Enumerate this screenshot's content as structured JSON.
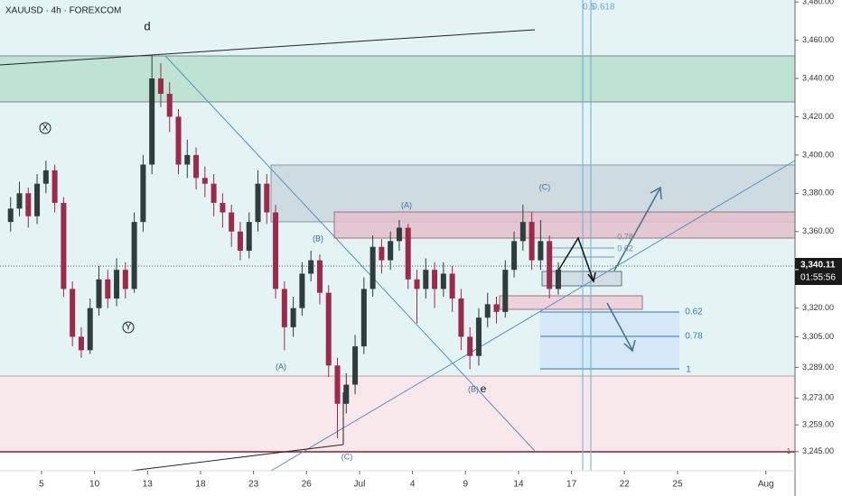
{
  "chart_data": {
    "type": "candlestick",
    "title": "XAUUSD · 4h · FOREXCOM",
    "up_color": "#2f3d3d",
    "down_color": "#9c2a4a",
    "xlim": [
      0.65,
      45.65
    ],
    "ylim": [
      3235,
      3481
    ],
    "xticks": [
      {
        "value": 3,
        "label": "5"
      },
      {
        "value": 6,
        "label": "10"
      },
      {
        "value": 9,
        "label": "13"
      },
      {
        "value": 12,
        "label": "18"
      },
      {
        "value": 15,
        "label": "23"
      },
      {
        "value": 18,
        "label": "26"
      },
      {
        "value": 21,
        "label": "Jul"
      },
      {
        "value": 24,
        "label": "4"
      },
      {
        "value": 27,
        "label": "9"
      },
      {
        "value": 30,
        "label": "14"
      },
      {
        "value": 33,
        "label": "17"
      },
      {
        "value": 36,
        "label": "22"
      },
      {
        "value": 39,
        "label": "25"
      },
      {
        "value": 44,
        "label": "Aug"
      }
    ],
    "yticks": [
      {
        "value": 3480,
        "label": "3,480.00"
      },
      {
        "value": 3460,
        "label": "3,460.00"
      },
      {
        "value": 3440,
        "label": "3,440.00"
      },
      {
        "value": 3420,
        "label": "3,420.00"
      },
      {
        "value": 3400,
        "label": "3,400.00"
      },
      {
        "value": 3380,
        "label": "3,380.00"
      },
      {
        "value": 3360,
        "label": "3,360.00"
      },
      {
        "value": 3320,
        "label": "3,320.00"
      },
      {
        "value": 3305,
        "label": "3,305.00"
      },
      {
        "value": 3289,
        "label": "3,289.00"
      },
      {
        "value": 3273,
        "label": "3,273.00"
      },
      {
        "value": 3259,
        "label": "3,259.00"
      },
      {
        "value": 3245,
        "label": "3,245.00"
      }
    ],
    "last_price": {
      "value": 3340.11,
      "label": "3,340.11"
    },
    "countdown": "01:55:56",
    "annotations": [
      "d",
      "X",
      "Y",
      "(A)",
      "(B)",
      "(C)",
      "(A)",
      "(B)",
      "e",
      "(C)",
      "0.78",
      "0.62",
      "0.62",
      "0.78",
      "1",
      "0.5",
      "0.618",
      "1"
    ],
    "x": [
      1.25,
      1.75,
      2.25,
      2.75,
      3.25,
      3.75,
      4.25,
      4.75,
      5.25,
      5.75,
      6.25,
      6.75,
      7.25,
      7.75,
      8.25,
      8.75,
      9.25,
      9.75,
      10.25,
      10.75,
      11.25,
      11.75,
      12.25,
      12.75,
      13.25,
      13.75,
      14.25,
      14.75,
      15.25,
      15.75,
      16.25,
      16.75,
      17.25,
      17.75,
      18.25,
      18.75,
      19.25,
      19.75,
      20.25,
      20.75,
      21.25,
      21.75,
      22.25,
      22.75,
      23.25,
      23.75,
      24.25,
      24.75,
      25.25,
      25.75,
      26.25,
      26.75,
      27.25,
      27.75,
      28.25,
      28.75,
      29.25,
      29.75,
      30.25,
      30.75,
      31.25,
      31.75,
      32.25
    ],
    "open": [
      3365,
      3372,
      3380,
      3368,
      3385,
      3392,
      3375,
      3330,
      3305,
      3298,
      3320,
      3335,
      3325,
      3340,
      3330,
      3365,
      3395,
      3440,
      3432,
      3420,
      3395,
      3400,
      3388,
      3385,
      3375,
      3370,
      3360,
      3350,
      3365,
      3385,
      3370,
      3330,
      3310,
      3320,
      3338,
      3345,
      3328,
      3290,
      3270,
      3280,
      3300,
      3330,
      3352,
      3345,
      3355,
      3362,
      3335,
      3330,
      3340,
      3330,
      3338,
      3325,
      3305,
      3295,
      3315,
      3322,
      3318,
      3340,
      3355,
      3365,
      3345,
      3355,
      3330
    ],
    "high": [
      3378,
      3386,
      3383,
      3390,
      3397,
      3395,
      3378,
      3334,
      3310,
      3325,
      3342,
      3340,
      3346,
      3344,
      3370,
      3400,
      3452,
      3448,
      3438,
      3424,
      3408,
      3404,
      3394,
      3390,
      3380,
      3374,
      3365,
      3370,
      3392,
      3390,
      3374,
      3334,
      3326,
      3344,
      3350,
      3348,
      3332,
      3294,
      3286,
      3306,
      3336,
      3358,
      3356,
      3360,
      3366,
      3364,
      3340,
      3346,
      3344,
      3344,
      3342,
      3330,
      3310,
      3320,
      3328,
      3326,
      3345,
      3360,
      3374,
      3370,
      3366,
      3358,
      3344
    ],
    "low": [
      3360,
      3368,
      3362,
      3364,
      3380,
      3370,
      3326,
      3300,
      3294,
      3296,
      3316,
      3320,
      3321,
      3325,
      3328,
      3360,
      3390,
      3425,
      3412,
      3390,
      3388,
      3382,
      3378,
      3368,
      3362,
      3352,
      3345,
      3346,
      3360,
      3364,
      3325,
      3298,
      3305,
      3316,
      3334,
      3322,
      3284,
      3252,
      3265,
      3275,
      3296,
      3326,
      3338,
      3340,
      3350,
      3330,
      3312,
      3325,
      3320,
      3326,
      3318,
      3298,
      3288,
      3290,
      3310,
      3312,
      3315,
      3336,
      3350,
      3340,
      3340,
      3325,
      3327
    ],
    "close": [
      3372,
      3380,
      3368,
      3385,
      3392,
      3375,
      3330,
      3305,
      3298,
      3320,
      3335,
      3325,
      3340,
      3330,
      3365,
      3395,
      3440,
      3432,
      3420,
      3395,
      3400,
      3388,
      3385,
      3375,
      3370,
      3360,
      3350,
      3365,
      3385,
      3370,
      3330,
      3310,
      3320,
      3338,
      3345,
      3328,
      3290,
      3270,
      3280,
      3300,
      3330,
      3352,
      3345,
      3355,
      3362,
      3335,
      3330,
      3340,
      3330,
      3338,
      3325,
      3305,
      3295,
      3315,
      3322,
      3318,
      3340,
      3355,
      3365,
      3345,
      3355,
      3330,
      3340.11
    ]
  }
}
